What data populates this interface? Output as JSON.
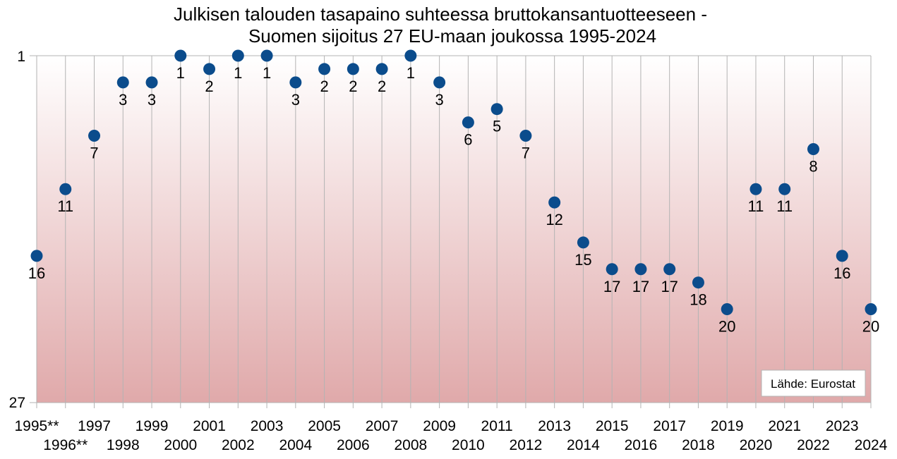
{
  "chart_data": {
    "type": "scatter",
    "title": "Julkisen talouden tasapaino suhteessa bruttokansantuotteeseen -",
    "subtitle": "Suomen sijoitus 27 EU-maan joukossa 1995-2024",
    "x": [
      "1995**",
      "1996**",
      "1997",
      "1998",
      "1999",
      "2000",
      "2001",
      "2002",
      "2003",
      "2004",
      "2005",
      "2006",
      "2007",
      "2008",
      "2009",
      "2010",
      "2011",
      "2012",
      "2013",
      "2014",
      "2015",
      "2016",
      "2017",
      "2018",
      "2019",
      "2020",
      "2021",
      "2022",
      "2023",
      "2024"
    ],
    "values": [
      16,
      11,
      7,
      3,
      3,
      1,
      2,
      1,
      1,
      3,
      2,
      2,
      2,
      1,
      3,
      6,
      5,
      7,
      12,
      15,
      17,
      17,
      17,
      18,
      20,
      11,
      11,
      8,
      16,
      20
    ],
    "y_ticks": [
      "1",
      "27"
    ],
    "ylim": [
      1,
      27
    ],
    "y_reversed": true,
    "grid": "vertical",
    "legend": "none",
    "annotation": "Lähde: Eurostat",
    "marker_color": "#0b4c8c",
    "background_gradient": [
      "#ffffff",
      "#e0a9aa"
    ]
  }
}
